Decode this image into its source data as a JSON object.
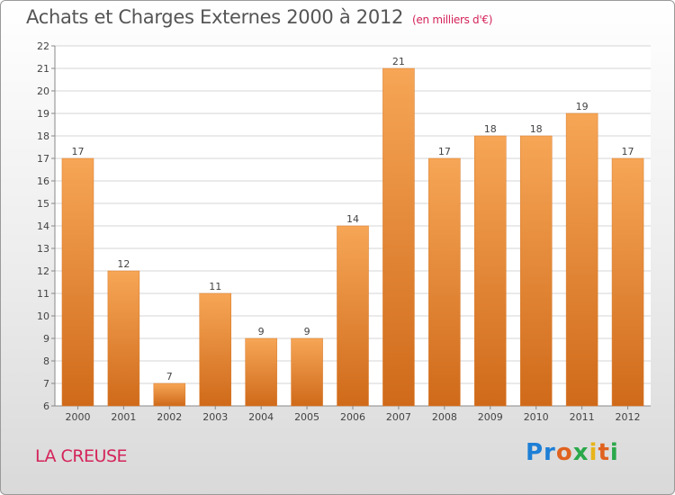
{
  "title": "Achats et Charges Externes 2000 à 2012",
  "subtitle": "(en milliers d'€)",
  "place": "LA CREUSE",
  "logo": "Proxiti",
  "colors": {
    "bar_top": "#f6a656",
    "bar_bottom": "#cf6a1a",
    "accent_pink": "#d4245a"
  },
  "chart_data": {
    "type": "bar",
    "categories": [
      "2000",
      "2001",
      "2002",
      "2003",
      "2004",
      "2005",
      "2006",
      "2007",
      "2008",
      "2009",
      "2010",
      "2011",
      "2012"
    ],
    "values": [
      17,
      12,
      7,
      11,
      9,
      9,
      14,
      21,
      17,
      18,
      18,
      19,
      17
    ],
    "title": "Achats et Charges Externes 2000 à 2012",
    "subtitle": "(en milliers d'€)",
    "xlabel": "",
    "ylabel": "",
    "ylim": [
      6,
      22
    ],
    "yticks": [
      6,
      7,
      8,
      9,
      10,
      11,
      12,
      13,
      14,
      15,
      16,
      17,
      18,
      19,
      20,
      21,
      22
    ],
    "grid": true,
    "data_labels": true
  }
}
